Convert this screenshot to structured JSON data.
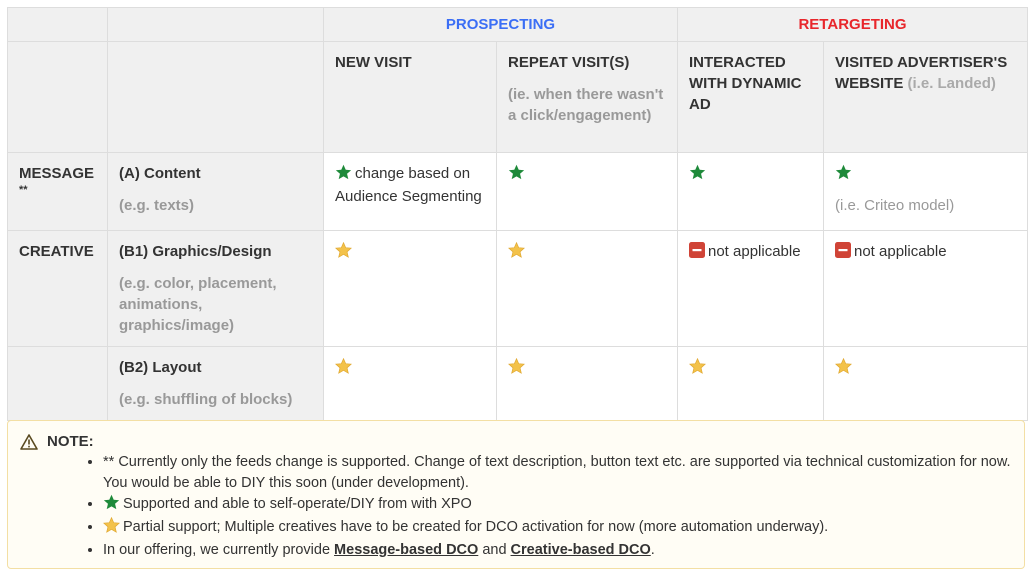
{
  "colors": {
    "prospecting": "#3b6ef5",
    "retargeting": "#e8262b",
    "star_full": "#1e8a3a",
    "star_partial": "#f3c24a",
    "not_applicable": "#d04437"
  },
  "groups": {
    "prospecting": "PROSPECTING",
    "retargeting": "RETARGETING"
  },
  "columns": [
    {
      "title": "NEW VISIT",
      "note": ""
    },
    {
      "title": "REPEAT VISIT(S)",
      "note": "(ie. when there wasn't a click/engagement)"
    },
    {
      "title": "INTERACTED WITH DYNAMIC AD",
      "note": ""
    },
    {
      "title": "VISITED ADVERTISER'S WEBSITE",
      "note": "(i.e. Landed)"
    }
  ],
  "rows": [
    {
      "category": "MESSAGE",
      "category_mark": "**",
      "label": "(A) Content",
      "example": "(e.g. texts)",
      "cells": [
        {
          "icon": "star-full",
          "text": "change based on Audience Segmenting"
        },
        {
          "icon": "star-full",
          "text": ""
        },
        {
          "icon": "star-full",
          "text": ""
        },
        {
          "icon": "star-full",
          "text": "",
          "note": "(i.e. Criteo model)"
        }
      ]
    },
    {
      "category": "CREATIVE",
      "label": "(B1) Graphics/Design",
      "example": "(e.g. color, placement, animations, graphics/image)",
      "cells": [
        {
          "icon": "star-partial",
          "text": ""
        },
        {
          "icon": "star-partial",
          "text": ""
        },
        {
          "icon": "minus",
          "text": "not applicable"
        },
        {
          "icon": "minus",
          "text": "not applicable"
        }
      ]
    },
    {
      "category": "",
      "label": "(B2) Layout",
      "example": "(e.g. shuffling of blocks)",
      "cells": [
        {
          "icon": "star-partial",
          "text": ""
        },
        {
          "icon": "star-partial",
          "text": ""
        },
        {
          "icon": "star-partial",
          "text": ""
        },
        {
          "icon": "star-partial",
          "text": ""
        }
      ]
    }
  ],
  "note": {
    "title": "NOTE:",
    "items": [
      "** Currently only the feeds change is supported. Change of text description, button text etc. are supported via technical customization for now. You would be able to DIY this soon (under development).",
      "Supported and able to self-operate/DIY from with XPO",
      "Partial support; Multiple creatives have to be created for DCO activation for now (more automation underway)."
    ],
    "last": {
      "prefix": "In our offering, we currently provide ",
      "link1": "Message-based DCO",
      "mid": " and ",
      "link2": "Creative-based DCO",
      "suffix": "."
    }
  }
}
